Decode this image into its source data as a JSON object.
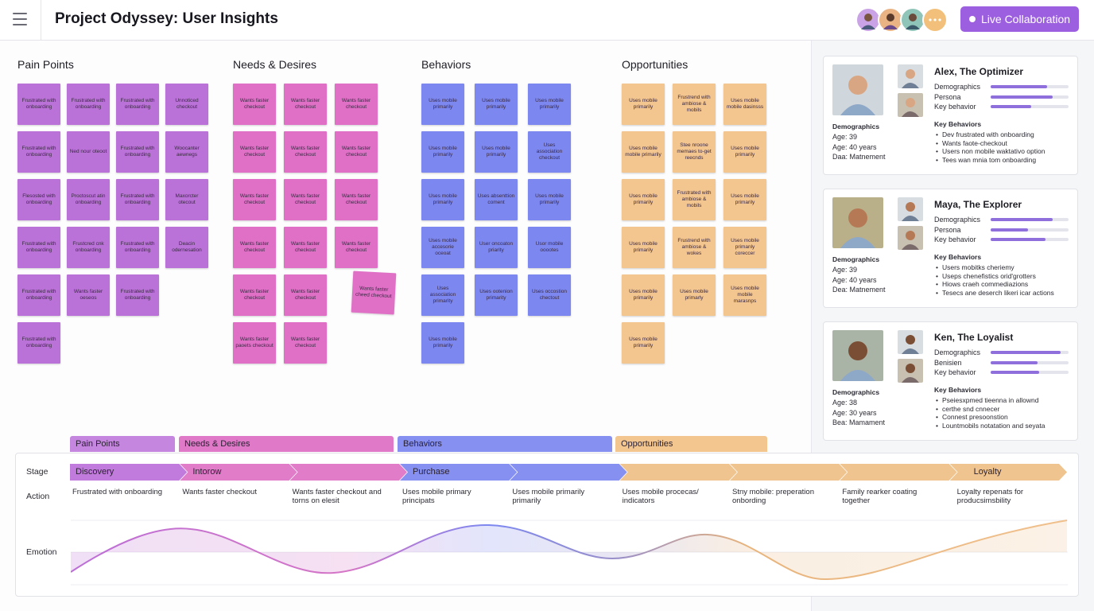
{
  "header": {
    "title": "Project Odyssey: User Insights",
    "button": "Live Collaboration"
  },
  "board": {
    "columns": [
      {
        "title": "Pain Points",
        "color": "#bb72d8",
        "rows": [
          [
            "Frustrated with onboarding",
            "Frustrated with onboarding",
            "Frustrated with onboarding",
            "Unnoticed checkout"
          ],
          [
            "Frustrated with onboarding",
            "Ned nour oteoot",
            "Frustrated with onboarding",
            "Woocanter aewnegs"
          ],
          [
            "Flesosted with onboarding",
            "Proctoscut atin onboarding",
            "Frustrated with onboarding",
            "Maxorcter otecout"
          ],
          [
            "Frustrated with onboarding",
            "Frustcred cnk onboarding",
            "Frustrated with onboarding",
            "Deacin odernesation"
          ],
          [
            "Frustrated with onboarding",
            "Wants faster oeseos",
            "Frustrated with onboarding"
          ],
          [
            "Frustrated with onboarding"
          ]
        ]
      },
      {
        "title": "Needs & Desires",
        "color": "#e070c6",
        "rows": [
          [
            "Wants faster checkout",
            "Wants faster checkout",
            "Wants faster checkout"
          ],
          [
            "Wants faster checkout",
            "Wants faster checkout",
            "Wants faster checkout"
          ],
          [
            "Wants faster checkout",
            "Wants faster checkout",
            "Wants faster checkout"
          ],
          [
            "Wants faster checkout",
            "Wants faster checkout",
            "Wants faster checkout"
          ],
          [
            "Wants faster checkout",
            "Wants faster checkout",
            "Wants faster cheed checkout"
          ],
          [
            "Wants faster paoets checkout",
            "Wants faster checkout"
          ]
        ]
      },
      {
        "title": "Behaviors",
        "color": "#7c88f0",
        "rows": [
          [
            "Uses mobile primarily",
            "Uses mobile primarily",
            "Uses mobile primarily"
          ],
          [
            "Uses mobile primarily",
            "Uses mobile primarily",
            "Uses association checkout"
          ],
          [
            "Uses mobile primarily",
            "Uses absenttion coment",
            "Uses mobile primarily"
          ],
          [
            "Uses mobile accesorie oceoat",
            "User oncoaton priarity",
            "Usor mobile ooootes"
          ],
          [
            "Uses association primarity",
            "Uses ootenion primarity",
            "Uses occostion chectout"
          ],
          [
            "Uses mobile primarily"
          ]
        ]
      },
      {
        "title": "Opportunities",
        "color": "#f3c58f",
        "rows": [
          [
            "Uses mobile primarily",
            "Frustrend with ambiose & mobils",
            "Uses mobile mobile dasinsss"
          ],
          [
            "Uses mobile mobile primarily",
            "Stee nroone memaes to-get reecnds",
            "Uses mobile primarily"
          ],
          [
            "Uses mobile primarily",
            "Frustrated with ambiose & mobils",
            "Uses mobile primarily"
          ],
          [
            "Uses mobile primarily",
            "Frustrend with ambiose & wokes",
            "Uses mobile primanly coreccer"
          ],
          [
            "Uses mobile primarily",
            "Uses mobile primarly",
            "Uses mobile mobile marasnps"
          ],
          [
            "Uses mobile primarily"
          ]
        ]
      }
    ]
  },
  "personas": [
    {
      "name": "Alex, The Optimizer",
      "bars": [
        {
          "label": "Demographics",
          "level": 72
        },
        {
          "label": "Persona",
          "level": 80
        },
        {
          "label": "Key behavior",
          "level": 52
        }
      ],
      "demographics_title": "Demographics",
      "demographics": [
        "Age: 39",
        "Age: 40 years",
        "Daa: Matnement"
      ],
      "behaviors_title": "Key Behaviors",
      "behaviors": [
        "Dev frustrated with onboarding",
        "Wants faote-checkout",
        "Users non mobile waktativo option",
        "Tees wan mnia tom onboarding"
      ]
    },
    {
      "name": "Maya, The Explorer",
      "bars": [
        {
          "label": "Demographics",
          "level": 80
        },
        {
          "label": "Persona",
          "level": 48
        },
        {
          "label": "Key behavior",
          "level": 70
        }
      ],
      "demographics_title": "Demographics",
      "demographics": [
        "Age: 39",
        "Age: 40 years",
        "Dea: Matnement"
      ],
      "behaviors_title": "Key Behaviors",
      "behaviors": [
        "Users mobitks cheriemy",
        "Useps chenefistics orid'grotters",
        "Hiows craeh commediazions",
        "Tesecs ane deserch likeri icar actions"
      ]
    },
    {
      "name": "Ken, The Loyalist",
      "bars": [
        {
          "label": "Demographics",
          "level": 90
        },
        {
          "label": "Benisien",
          "level": 60
        },
        {
          "label": "Key behavior",
          "level": 62
        }
      ],
      "demographics_title": "Demographics",
      "demographics": [
        "Age: 38",
        "Age: 30 years",
        "Bea: Mamament"
      ],
      "behaviors_title": "Key Behaviors",
      "behaviors": [
        "Pseiesxpmed tieenna in allownd",
        "certhe snd cnnecer",
        "Connest presoonstion",
        "Lountmobils notatation and seyata"
      ]
    }
  ],
  "journey": {
    "phases": [
      "Pain Points",
      "Needs & Desires",
      "Behaviors",
      "Opportunities"
    ],
    "stage_label": "Stage",
    "action_label": "Action",
    "emotion_label": "Emotion",
    "stages": [
      "Discovery",
      "Intorow",
      null,
      "Purchase",
      null,
      null,
      null,
      null,
      "Loyalty"
    ],
    "actions": [
      "Frustrated with onboarding",
      "Wants faster checkout",
      "Wants faster checkout and torns on elesit",
      "Uses mobile primary principats",
      "Uses mobile primarily primarily",
      "Uses mobile procecas/ indicators",
      "Stny mobile: preperation onbording",
      "Family rearker coating together",
      "Loyalty repenats for producsimsbility"
    ]
  }
}
